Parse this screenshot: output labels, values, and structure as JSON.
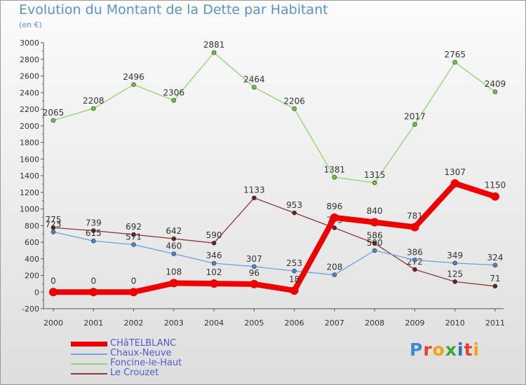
{
  "header": {
    "title": "Evolution du Montant de la Dette par Habitant",
    "subtitle": "(en €)"
  },
  "logo": {
    "text": "Proxiti",
    "colors": [
      "#3a8ad4",
      "#e8402a",
      "#f0a21a",
      "#3aa832",
      "#2b6fc0",
      "#e8402a",
      "#f0a21a"
    ]
  },
  "chart_data": {
    "type": "line",
    "x": [
      "2000",
      "2001",
      "2002",
      "2003",
      "2004",
      "2005",
      "2006",
      "2007",
      "2008",
      "2009",
      "2010",
      "2011"
    ],
    "ylim": [
      -200,
      3000
    ],
    "yticks": [
      "-200",
      "0",
      "200",
      "400",
      "600",
      "800",
      "1000",
      "1200",
      "1400",
      "1600",
      "1800",
      "2000",
      "2200",
      "2400",
      "2600",
      "2800",
      "3000"
    ],
    "grid": false,
    "legend_position": "bottom-left",
    "series": [
      {
        "name": "Foncine-le-Haut",
        "color": "#8fd468",
        "marker_color": "#6cc142",
        "values": [
          2065,
          2208,
          2496,
          2306,
          2881,
          2464,
          2206,
          1381,
          1315,
          2017,
          2765,
          2409
        ],
        "labels": [
          "2065",
          "2208",
          "2496",
          "2306",
          "2881",
          "2464",
          "2206",
          "1381",
          "1315",
          "2017",
          "2765",
          "2409"
        ]
      },
      {
        "name": "Le Crouzet",
        "color": "#8a3a3a",
        "marker_color": "#6b2020",
        "values": [
          775,
          739,
          692,
          642,
          590,
          1133,
          953,
          773,
          586,
          272,
          125,
          71
        ],
        "labels": [
          "775",
          "739",
          "692",
          "642",
          "590",
          "1133",
          "953",
          "773",
          "586",
          "272",
          "125",
          "71"
        ]
      },
      {
        "name": "Chaux-Neuve",
        "color": "#6fa3d6",
        "marker_color": "#4a86c8",
        "values": [
          723,
          615,
          571,
          460,
          346,
          307,
          253,
          208,
          500,
          386,
          349,
          324
        ],
        "labels": [
          "723",
          "615",
          "571",
          "460",
          "346",
          "307",
          "253",
          "208",
          "500",
          "386",
          "349",
          "324"
        ]
      },
      {
        "name": "CHâTELBLANC",
        "color": "#ee0000",
        "marker_color": "#ee0000",
        "values": [
          0,
          0,
          0,
          108,
          102,
          96,
          18,
          896,
          840,
          781,
          1307,
          1150
        ],
        "labels": [
          "0",
          "0",
          "0",
          "108",
          "102",
          "96",
          "18",
          "896",
          "840",
          "781",
          "1307",
          "1150"
        ]
      }
    ]
  },
  "legend": {
    "items": [
      {
        "label": "CHâTELBLANC",
        "color": "#ee0000"
      },
      {
        "label": "Chaux-Neuve",
        "color": "#6fa3d6"
      },
      {
        "label": "Foncine-le-Haut",
        "color": "#8fd468"
      },
      {
        "label": "Le Crouzet",
        "color": "#8a3a3a"
      }
    ]
  }
}
